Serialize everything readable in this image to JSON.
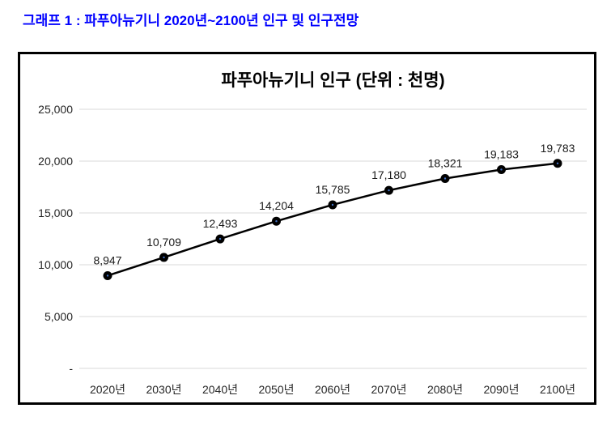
{
  "page": {
    "heading": "그래프 1 : 파푸아뉴기니 2020년~2100년 인구 및 인구전망",
    "heading_color": "#0000ff"
  },
  "chart_data": {
    "type": "line",
    "title": "파푸아뉴기니 인구 (단위 : 천명)",
    "categories": [
      "2020년",
      "2030년",
      "2040년",
      "2050년",
      "2060년",
      "2070년",
      "2080년",
      "2090년",
      "2100년"
    ],
    "values": [
      8947,
      10709,
      12493,
      14204,
      15785,
      17180,
      18321,
      19183,
      19783
    ],
    "data_labels": [
      "8,947",
      "10,709",
      "12,493",
      "14,204",
      "15,785",
      "17,180",
      "18,321",
      "19,183",
      "19,783"
    ],
    "y_ticks": [
      {
        "value": 0,
        "label": "-"
      },
      {
        "value": 5000,
        "label": "5,000"
      },
      {
        "value": 10000,
        "label": "10,000"
      },
      {
        "value": 15000,
        "label": "15,000"
      },
      {
        "value": 20000,
        "label": "20,000"
      },
      {
        "value": 25000,
        "label": "25,000"
      }
    ],
    "ylim": [
      0,
      25000
    ],
    "xlabel": "",
    "ylabel": "",
    "grid": true,
    "legend": "none",
    "colors": {
      "line": "#000000",
      "marker": "#000000",
      "marker_center": "#4472c4",
      "gridline": "#d9d9d9",
      "tick_text": "#262626",
      "data_label_text": "#1a1a1a"
    }
  }
}
